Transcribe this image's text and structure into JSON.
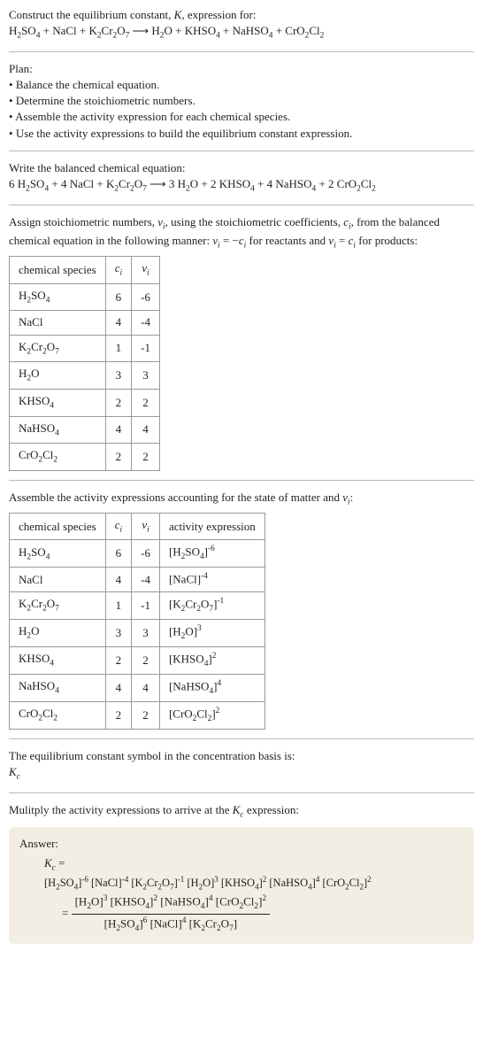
{
  "intro": {
    "line1_pre": "Construct the equilibrium constant, ",
    "line1_post": ", expression for:"
  },
  "plan": {
    "heading": "Plan:",
    "b1": "Balance the chemical equation.",
    "b2": "Determine the stoichiometric numbers.",
    "b3": "Assemble the activity expression for each chemical species.",
    "b4": "Use the activity expressions to build the equilibrium constant expression."
  },
  "balanced_heading": "Write the balanced chemical equation:",
  "assign_text": {
    "p1": "Assign stoichiometric numbers, ",
    "p2": ", using the stoichiometric coefficients, ",
    "p3": ", from the balanced chemical equation in the following manner: ",
    "p4": " for reactants and ",
    "p5": " for products:"
  },
  "table1": {
    "h1": "chemical species",
    "rows": [
      {
        "c": "6",
        "v": "-6"
      },
      {
        "c": "4",
        "v": "-4"
      },
      {
        "c": "1",
        "v": "-1"
      },
      {
        "c": "3",
        "v": "3"
      },
      {
        "c": "2",
        "v": "2"
      },
      {
        "c": "4",
        "v": "4"
      },
      {
        "c": "2",
        "v": "2"
      }
    ]
  },
  "assemble_text": {
    "p1": "Assemble the activity expressions accounting for the state of matter and ",
    "p2": ":"
  },
  "table2": {
    "h1": "chemical species",
    "h4": "activity expression"
  },
  "eq_symbol_text": "The equilibrium constant symbol in the concentration basis is:",
  "multiply_text": {
    "p1": "Mulitply the activity expressions to arrive at the ",
    "p2": " expression:"
  },
  "answer_label": "Answer:"
}
